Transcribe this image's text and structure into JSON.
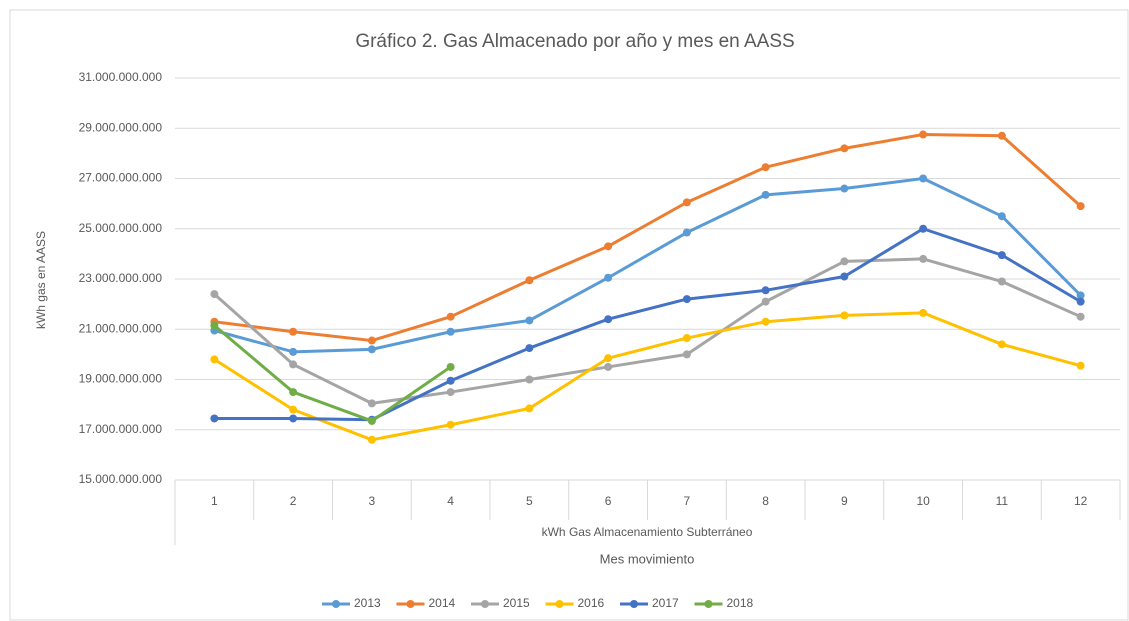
{
  "chart_data": {
    "type": "line",
    "title": "Gráfico 2. Gas Almacenado por año y mes en AASS",
    "y_label": "kWh gas en AASS",
    "x_sublabel": "kWh Gas Almacenamiento Subterráneo",
    "x_label": "Mes movimiento",
    "categories": [
      "1",
      "2",
      "3",
      "4",
      "5",
      "6",
      "7",
      "8",
      "9",
      "10",
      "11",
      "12"
    ],
    "ylim": [
      15000000000,
      31000000000
    ],
    "yticks": [
      {
        "value": 15000000000,
        "label": "15.000.000.000"
      },
      {
        "value": 17000000000,
        "label": "17.000.000.000"
      },
      {
        "value": 19000000000,
        "label": "19.000.000.000"
      },
      {
        "value": 21000000000,
        "label": "21.000.000.000"
      },
      {
        "value": 23000000000,
        "label": "23.000.000.000"
      },
      {
        "value": 25000000000,
        "label": "25.000.000.000"
      },
      {
        "value": 27000000000,
        "label": "27.000.000.000"
      },
      {
        "value": 29000000000,
        "label": "29.000.000.000"
      },
      {
        "value": 31000000000,
        "label": "31.000.000.000"
      }
    ],
    "grid": true,
    "legend": "bottom",
    "series": [
      {
        "name": "2013",
        "color": "#5b9bd5",
        "values": [
          20950000000,
          20100000000,
          20200000000,
          20900000000,
          21350000000,
          23050000000,
          24850000000,
          26350000000,
          26600000000,
          27000000000,
          25500000000,
          22350000000
        ]
      },
      {
        "name": "2014",
        "color": "#ed7d31",
        "values": [
          21300000000,
          20900000000,
          20550000000,
          21500000000,
          22950000000,
          24300000000,
          26050000000,
          27450000000,
          28200000000,
          28750000000,
          28700000000,
          25900000000
        ]
      },
      {
        "name": "2015",
        "color": "#a5a5a5",
        "values": [
          22400000000,
          19600000000,
          18050000000,
          18500000000,
          19000000000,
          19500000000,
          20000000000,
          22100000000,
          23700000000,
          23800000000,
          22900000000,
          21500000000
        ]
      },
      {
        "name": "2016",
        "color": "#ffc000",
        "values": [
          19800000000,
          17800000000,
          16600000000,
          17200000000,
          17850000000,
          19850000000,
          20650000000,
          21300000000,
          21550000000,
          21650000000,
          20400000000,
          19550000000
        ]
      },
      {
        "name": "2017",
        "color": "#4472c4",
        "values": [
          17450000000,
          17450000000,
          17400000000,
          18950000000,
          20250000000,
          21400000000,
          22200000000,
          22550000000,
          23100000000,
          25000000000,
          23950000000,
          22100000000
        ]
      },
      {
        "name": "2018",
        "color": "#70ad47",
        "values": [
          21150000000,
          18500000000,
          17350000000,
          19500000000,
          null,
          null,
          null,
          null,
          null,
          null,
          null,
          null
        ]
      }
    ]
  }
}
